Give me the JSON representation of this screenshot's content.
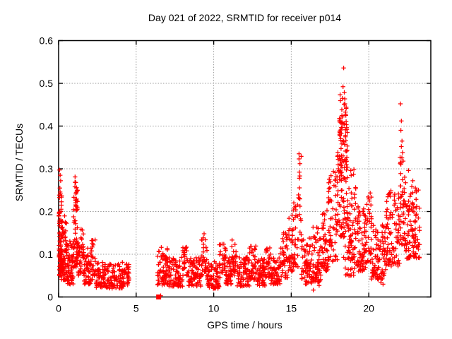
{
  "page": {
    "background": "#ffffff"
  },
  "chart_data": {
    "type": "scatter",
    "title": "Day 021 of 2022, SRMTID for receiver p014",
    "xlabel": "GPS time / hours",
    "ylabel": "SRMTID / TECUs",
    "xlim": [
      0,
      24
    ],
    "ylim": [
      0,
      0.6
    ],
    "xticks": [
      0,
      5,
      10,
      15,
      20
    ],
    "xtick_labels": [
      "0",
      "5",
      "10",
      "15",
      "20"
    ],
    "yticks": [
      0,
      0.1,
      0.2,
      0.3,
      0.4,
      0.5,
      0.6
    ],
    "ytick_labels": [
      "0",
      "0.1",
      "0.2",
      "0.3",
      "0.4",
      "0.5",
      "0.6"
    ],
    "grid": {
      "show": true,
      "style": "dotted",
      "color": "#9a9a9a",
      "at_xticks": [
        5,
        10,
        15,
        20
      ],
      "at_yticks": [
        0.1,
        0.2,
        0.3,
        0.4,
        0.5
      ]
    },
    "legend": "none",
    "frame_color": "#000000",
    "series_color": "#ff0000",
    "marker": "plus",
    "marker_size_px": 7,
    "seed": 20220121,
    "data_gaps_hours": [
      [
        4.55,
        6.38
      ],
      [
        23.28,
        24
      ]
    ],
    "max_value": {
      "x": 18.38,
      "y": 0.536
    },
    "cluster_segments_format": [
      "t_start_h",
      "t_end_h",
      "n_points",
      "tecu_min",
      "tecu_max",
      "shape: band=bottom-weighted, col=uniform-column"
    ],
    "cluster_segments": [
      [
        0.02,
        0.2,
        80,
        0.05,
        0.25,
        "band"
      ],
      [
        0.18,
        0.55,
        75,
        0.04,
        0.19,
        "band"
      ],
      [
        0.55,
        0.95,
        55,
        0.03,
        0.135,
        "band"
      ],
      [
        0.95,
        1.25,
        50,
        0.07,
        0.27,
        "band"
      ],
      [
        1.0,
        1.22,
        16,
        0.2,
        0.258,
        "col"
      ],
      [
        1.25,
        1.62,
        40,
        0.05,
        0.175,
        "band"
      ],
      [
        1.62,
        2.08,
        48,
        0.03,
        0.115,
        "band"
      ],
      [
        2.05,
        2.38,
        30,
        0.04,
        0.14,
        "band"
      ],
      [
        2.38,
        3.2,
        70,
        0.022,
        0.082,
        "band"
      ],
      [
        3.2,
        4.1,
        70,
        0.02,
        0.078,
        "band"
      ],
      [
        4.1,
        4.55,
        38,
        0.025,
        0.092,
        "band"
      ],
      [
        6.38,
        7.12,
        70,
        0.028,
        0.115,
        "band"
      ],
      [
        7.12,
        8.0,
        80,
        0.025,
        0.095,
        "band"
      ],
      [
        8.0,
        8.38,
        26,
        0.05,
        0.12,
        "band"
      ],
      [
        8.38,
        9.2,
        80,
        0.025,
        0.092,
        "band"
      ],
      [
        9.2,
        9.58,
        30,
        0.05,
        0.142,
        "band"
      ],
      [
        9.58,
        10.35,
        72,
        0.02,
        0.085,
        "band"
      ],
      [
        10.35,
        10.78,
        34,
        0.045,
        0.125,
        "band"
      ],
      [
        10.78,
        11.15,
        38,
        0.03,
        0.092,
        "band"
      ],
      [
        11.15,
        11.52,
        34,
        0.05,
        0.135,
        "band"
      ],
      [
        11.52,
        12.3,
        72,
        0.025,
        0.095,
        "band"
      ],
      [
        12.3,
        12.78,
        40,
        0.04,
        0.12,
        "band"
      ],
      [
        12.78,
        13.35,
        55,
        0.025,
        0.09,
        "band"
      ],
      [
        13.35,
        13.68,
        28,
        0.045,
        0.122,
        "band"
      ],
      [
        13.68,
        14.28,
        56,
        0.03,
        0.1,
        "band"
      ],
      [
        14.28,
        14.78,
        48,
        0.045,
        0.152,
        "band"
      ],
      [
        14.78,
        15.12,
        34,
        0.06,
        0.205,
        "band"
      ],
      [
        15.12,
        15.48,
        32,
        0.07,
        0.258,
        "band"
      ],
      [
        15.48,
        15.66,
        13,
        0.125,
        0.338,
        "col"
      ],
      [
        15.66,
        16.32,
        66,
        0.03,
        0.138,
        "band"
      ],
      [
        16.32,
        16.92,
        62,
        0.035,
        0.165,
        "band"
      ],
      [
        16.92,
        17.38,
        50,
        0.06,
        0.215,
        "band"
      ],
      [
        17.38,
        17.98,
        62,
        0.08,
        0.295,
        "band"
      ],
      [
        17.98,
        18.68,
        70,
        0.14,
        0.345,
        "band"
      ],
      [
        18.1,
        18.62,
        55,
        0.27,
        0.42,
        "col"
      ],
      [
        18.15,
        18.58,
        12,
        0.37,
        0.5,
        "col"
      ],
      [
        18.35,
        19.15,
        26,
        0.05,
        0.12,
        "band"
      ],
      [
        18.68,
        19.18,
        54,
        0.09,
        0.3,
        "band"
      ],
      [
        19.18,
        19.82,
        74,
        0.06,
        0.212,
        "band"
      ],
      [
        19.82,
        20.18,
        33,
        0.08,
        0.248,
        "band"
      ],
      [
        20.18,
        21.12,
        92,
        0.04,
        0.172,
        "band"
      ],
      [
        21.12,
        21.98,
        86,
        0.07,
        0.262,
        "band"
      ],
      [
        21.98,
        22.38,
        48,
        0.12,
        0.335,
        "band"
      ],
      [
        22.38,
        23.28,
        100,
        0.09,
        0.262,
        "band"
      ]
    ],
    "notable_points": [
      [
        0.06,
        0.297
      ],
      [
        0.1,
        0.285
      ],
      [
        0.13,
        0.272
      ],
      [
        0.08,
        0.255
      ],
      [
        1.06,
        0.281
      ],
      [
        1.1,
        0.268
      ],
      [
        6.62,
        0.116
      ],
      [
        9.38,
        0.148
      ],
      [
        15.5,
        0.335
      ],
      [
        15.56,
        0.312
      ],
      [
        15.52,
        0.292
      ],
      [
        16.42,
        0.016
      ],
      [
        16.8,
        0.027
      ],
      [
        18.38,
        0.536
      ],
      [
        18.34,
        0.492
      ],
      [
        18.42,
        0.479
      ],
      [
        18.3,
        0.465
      ],
      [
        18.46,
        0.452
      ],
      [
        18.26,
        0.438
      ],
      [
        18.52,
        0.425
      ],
      [
        18.2,
        0.408
      ],
      [
        18.58,
        0.392
      ],
      [
        20.78,
        0.034
      ],
      [
        20.92,
        0.03
      ],
      [
        22.04,
        0.452
      ],
      [
        22.1,
        0.412
      ],
      [
        22.07,
        0.39
      ],
      [
        22.14,
        0.365
      ],
      [
        22.1,
        0.352
      ],
      [
        22.18,
        0.338
      ],
      [
        22.22,
        0.318
      ],
      [
        22.56,
        0.296
      ],
      [
        22.84,
        0.272
      ]
    ],
    "special_points": [
      {
        "marker": "filled-square",
        "x": 6.45,
        "y": 0
      },
      {
        "marker": "plus",
        "x": 6.58,
        "y": 0.003
      }
    ]
  }
}
